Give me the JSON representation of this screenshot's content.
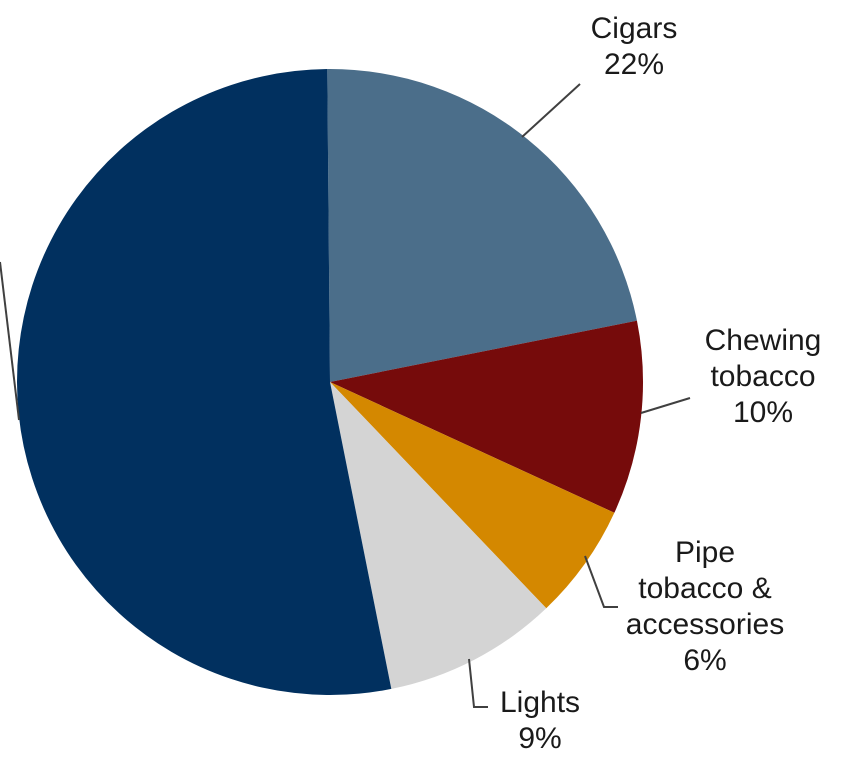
{
  "chart_data": {
    "type": "pie",
    "title": "",
    "start_angle_deg": -0.5,
    "direction": "clockwise",
    "slices": [
      {
        "label_lines": [
          "Cigars"
        ],
        "value": 22,
        "value_label": "22%",
        "color": "#4b6e8a"
      },
      {
        "label_lines": [
          "Chewing",
          "tobacco"
        ],
        "value": 10,
        "value_label": "10%",
        "color": "#760b0b"
      },
      {
        "label_lines": [
          "Pipe",
          "tobacco &",
          "accessories"
        ],
        "value": 6,
        "value_label": "6%",
        "color": "#d48800"
      },
      {
        "label_lines": [
          "Lights"
        ],
        "value": 9,
        "value_label": "9%",
        "color": "#d4d4d4"
      },
      {
        "label_lines": [],
        "value": 53,
        "value_label": "",
        "color": "#01305f"
      }
    ]
  }
}
